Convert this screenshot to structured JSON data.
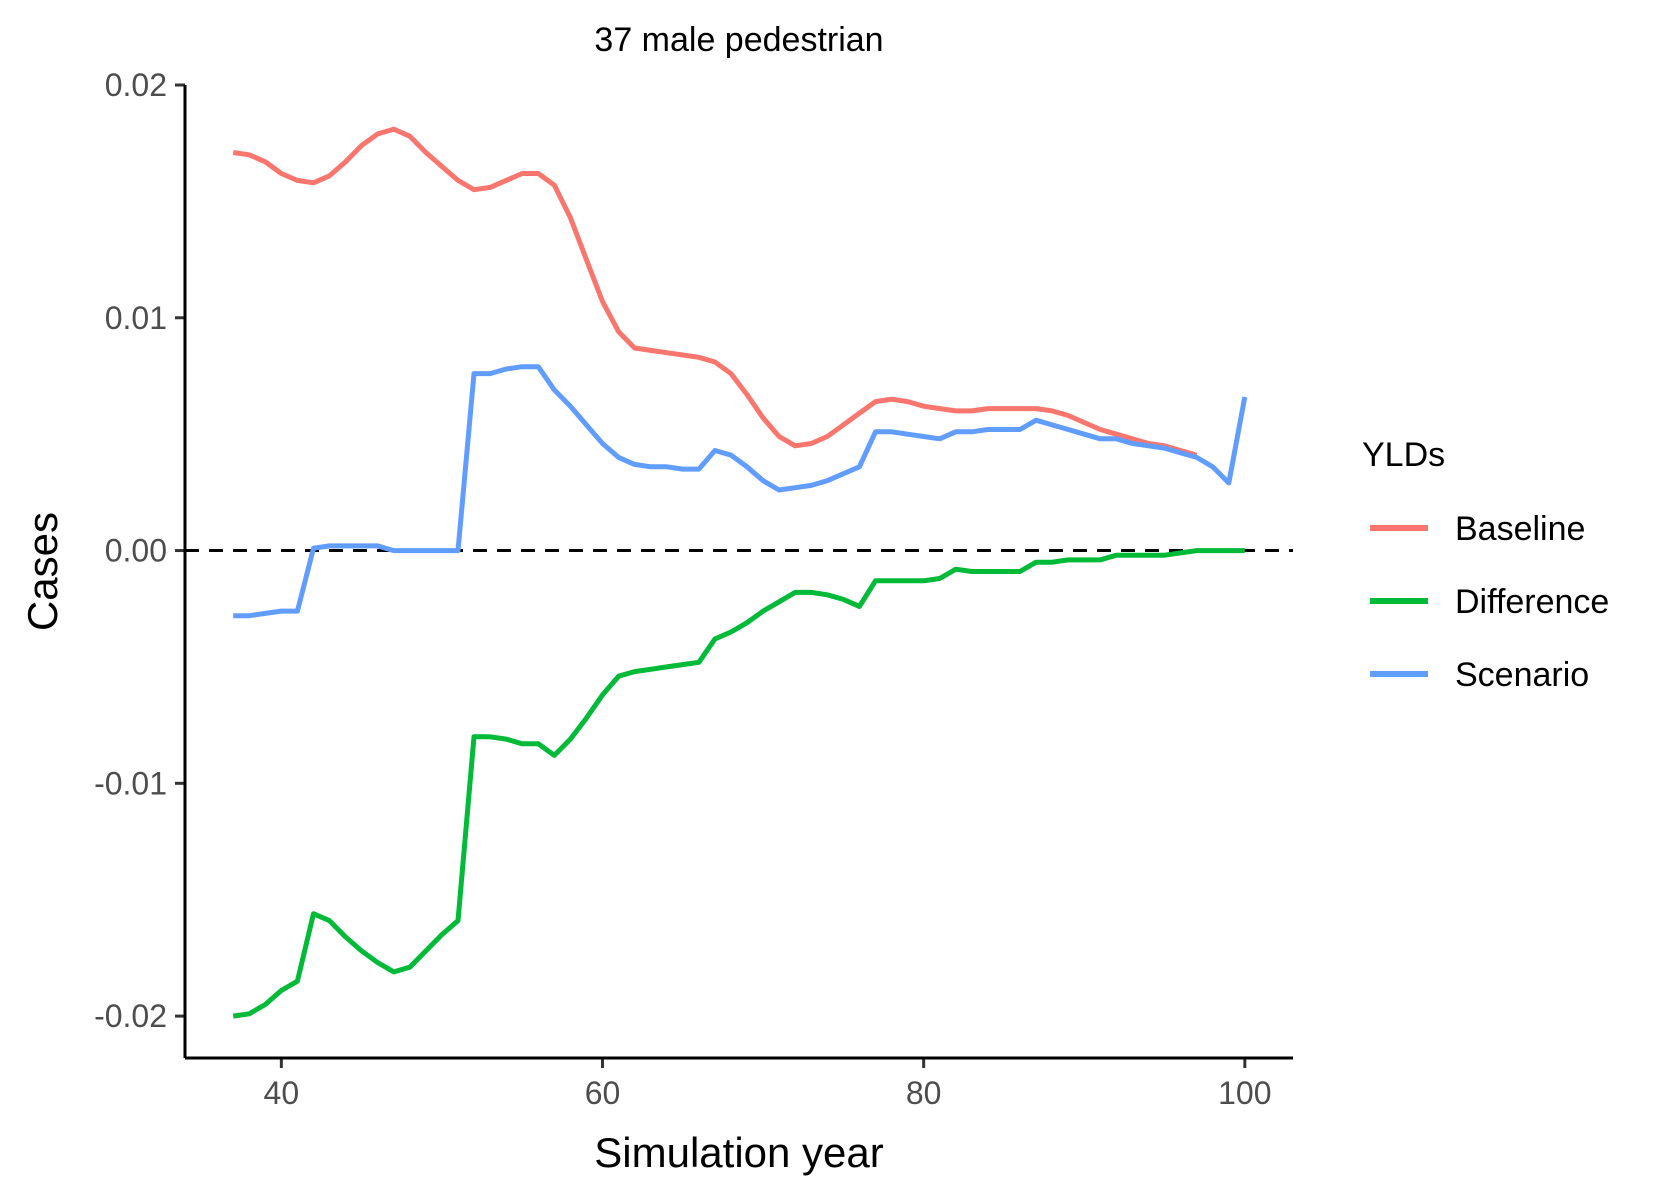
{
  "chart_data": {
    "type": "line",
    "title": "37 male pedestrian",
    "xlabel": "Simulation year",
    "ylabel": "Cases",
    "xlim": [
      34,
      103
    ],
    "ylim": [
      -0.0218,
      0.02
    ],
    "x_ticks": [
      40,
      60,
      80,
      100
    ],
    "x_tick_labels": [
      "40",
      "60",
      "80",
      "100"
    ],
    "y_ticks": [
      -0.02,
      -0.01,
      0.0,
      0.01,
      0.02
    ],
    "y_tick_labels": [
      "-0.02",
      "-0.01",
      "0.00",
      "0.01",
      "0.02"
    ],
    "reference_line": {
      "y": 0.0,
      "style": "dashed",
      "color": "#000000"
    },
    "grid": false,
    "legend": {
      "title": "YLDs",
      "position": "right"
    },
    "series": [
      {
        "name": "Baseline",
        "color": "#F8766D",
        "x": [
          37,
          38,
          39,
          40,
          41,
          42,
          43,
          44,
          45,
          46,
          47,
          48,
          49,
          50,
          51,
          52,
          53,
          54,
          55,
          56,
          57,
          58,
          59,
          60,
          61,
          62,
          63,
          64,
          65,
          66,
          67,
          68,
          69,
          70,
          71,
          72,
          73,
          74,
          75,
          76,
          77,
          78,
          79,
          80,
          81,
          82,
          83,
          84,
          85,
          86,
          87,
          88,
          89,
          90,
          91,
          92,
          93,
          94,
          95,
          96,
          97
        ],
        "y": [
          0.0171,
          0.017,
          0.0167,
          0.0162,
          0.0159,
          0.0158,
          0.0161,
          0.0167,
          0.0174,
          0.0179,
          0.0181,
          0.0178,
          0.0171,
          0.0165,
          0.0159,
          0.0155,
          0.0156,
          0.0159,
          0.0162,
          0.0162,
          0.0157,
          0.0143,
          0.0125,
          0.0107,
          0.0094,
          0.0087,
          0.0086,
          0.0085,
          0.0084,
          0.0083,
          0.0081,
          0.0076,
          0.0067,
          0.0057,
          0.0049,
          0.0045,
          0.0046,
          0.0049,
          0.0054,
          0.0059,
          0.0064,
          0.0065,
          0.0064,
          0.0062,
          0.0061,
          0.006,
          0.006,
          0.0061,
          0.0061,
          0.0061,
          0.0061,
          0.006,
          0.0058,
          0.0055,
          0.0052,
          0.005,
          0.0048,
          0.0046,
          0.0045,
          0.0043,
          0.0041
        ]
      },
      {
        "name": "Difference",
        "color": "#00BA38",
        "x": [
          37,
          38,
          39,
          40,
          41,
          42,
          43,
          44,
          45,
          46,
          47,
          48,
          49,
          50,
          51,
          52,
          53,
          54,
          55,
          56,
          57,
          58,
          59,
          60,
          61,
          62,
          63,
          64,
          65,
          66,
          67,
          68,
          69,
          70,
          71,
          72,
          73,
          74,
          75,
          76,
          77,
          78,
          79,
          80,
          81,
          82,
          83,
          84,
          85,
          86,
          87,
          88,
          89,
          90,
          91,
          92,
          93,
          94,
          95,
          96,
          97,
          98,
          99,
          100
        ],
        "y": [
          -0.02,
          -0.0199,
          -0.0195,
          -0.0189,
          -0.0185,
          -0.0156,
          -0.0159,
          -0.0166,
          -0.0172,
          -0.0177,
          -0.0181,
          -0.0179,
          -0.0172,
          -0.0165,
          -0.0159,
          -0.008,
          -0.008,
          -0.0081,
          -0.0083,
          -0.0083,
          -0.0088,
          -0.0081,
          -0.0072,
          -0.0062,
          -0.0054,
          -0.0052,
          -0.0051,
          -0.005,
          -0.0049,
          -0.0048,
          -0.0038,
          -0.0035,
          -0.0031,
          -0.0026,
          -0.0022,
          -0.0018,
          -0.0018,
          -0.0019,
          -0.0021,
          -0.0024,
          -0.0013,
          -0.0013,
          -0.0013,
          -0.0013,
          -0.0012,
          -0.0008,
          -0.0009,
          -0.0009,
          -0.0009,
          -0.0009,
          -0.0005,
          -0.0005,
          -0.0004,
          -0.0004,
          -0.0004,
          -0.0002,
          -0.0002,
          -0.0002,
          -0.0002,
          -0.0001,
          0.0,
          0.0,
          0.0,
          0.0
        ]
      },
      {
        "name": "Scenario",
        "color": "#619CFF",
        "x": [
          37,
          38,
          39,
          40,
          41,
          42,
          43,
          44,
          45,
          46,
          47,
          48,
          49,
          50,
          51,
          52,
          53,
          54,
          55,
          56,
          57,
          58,
          59,
          60,
          61,
          62,
          63,
          64,
          65,
          66,
          67,
          68,
          69,
          70,
          71,
          72,
          73,
          74,
          75,
          76,
          77,
          78,
          79,
          80,
          81,
          82,
          83,
          84,
          85,
          86,
          87,
          88,
          89,
          90,
          91,
          92,
          93,
          94,
          95,
          96,
          97,
          98,
          99,
          100
        ],
        "y": [
          -0.0028,
          -0.0028,
          -0.0027,
          -0.0026,
          -0.0026,
          0.0001,
          0.0002,
          0.0002,
          0.0002,
          0.0002,
          0.0,
          0.0,
          0.0,
          0.0,
          0.0,
          0.0076,
          0.0076,
          0.0078,
          0.0079,
          0.0079,
          0.0069,
          0.0062,
          0.0054,
          0.0046,
          0.004,
          0.0037,
          0.0036,
          0.0036,
          0.0035,
          0.0035,
          0.0043,
          0.0041,
          0.0036,
          0.003,
          0.0026,
          0.0027,
          0.0028,
          0.003,
          0.0033,
          0.0036,
          0.0051,
          0.0051,
          0.005,
          0.0049,
          0.0048,
          0.0051,
          0.0051,
          0.0052,
          0.0052,
          0.0052,
          0.0056,
          0.0054,
          0.0052,
          0.005,
          0.0048,
          0.0048,
          0.0046,
          0.0045,
          0.0044,
          0.0042,
          0.004,
          0.0036,
          0.0029,
          0.0066
        ]
      }
    ]
  }
}
